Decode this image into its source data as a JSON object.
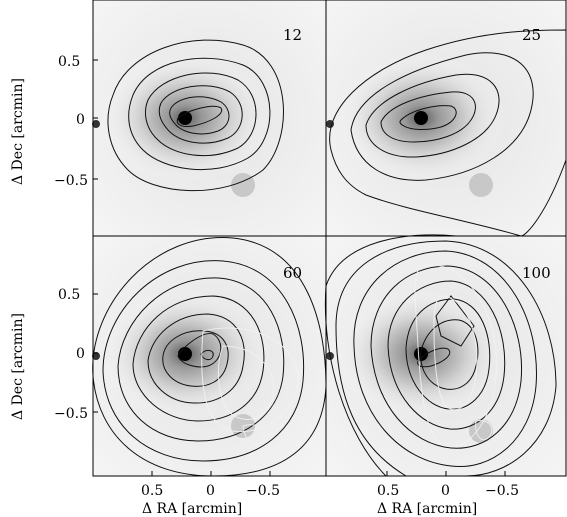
{
  "figure": {
    "panel_labels": [
      "12",
      "25",
      "60",
      "100"
    ],
    "y_axis_label": "Δ Dec  [arcmin]",
    "x_axis_label": "Δ RA  [arcmin]",
    "y_ticks": [
      "0.5",
      "0",
      "−0.5"
    ],
    "x_ticks": [
      "0.5",
      "0",
      "−0.5"
    ],
    "colors": {
      "background": "#ffffff",
      "contour": "#111111",
      "overlay_contour": "#f2f2f2",
      "image_gray": "#d9d9d9"
    }
  }
}
